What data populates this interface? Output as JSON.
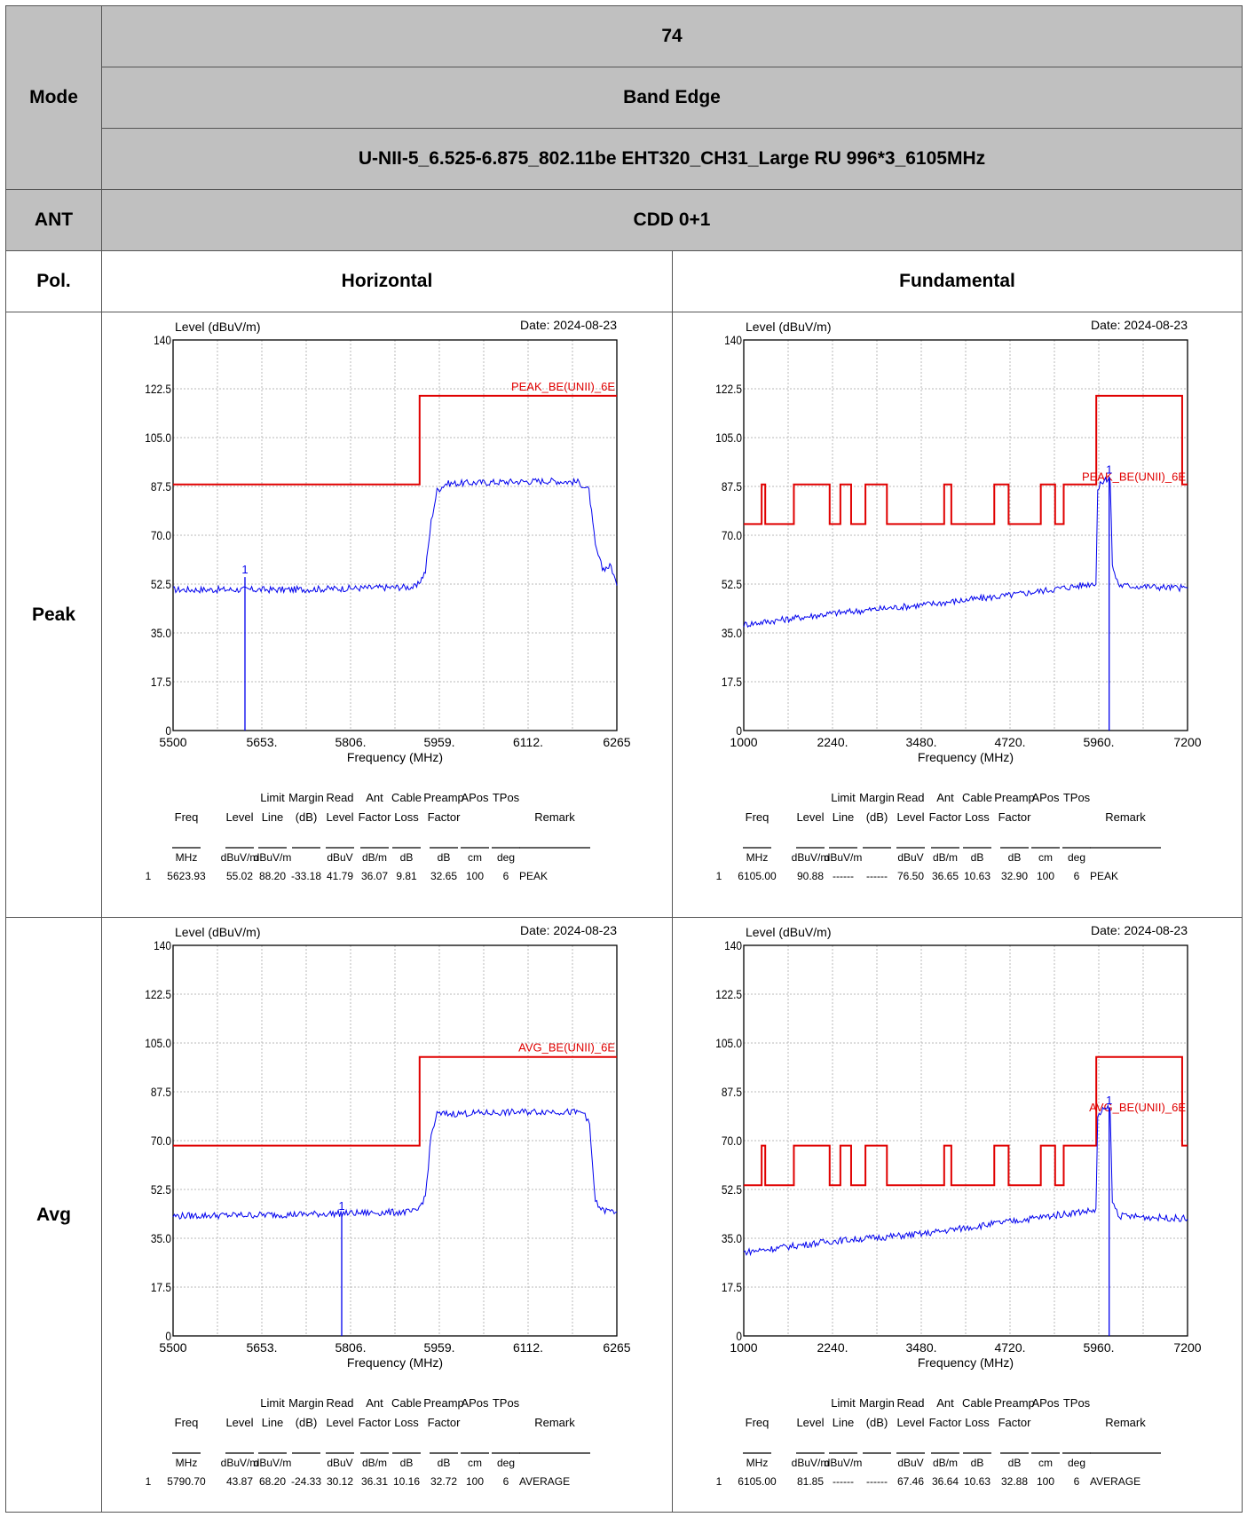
{
  "header": {
    "mode_label": "Mode",
    "test_number": "74",
    "test_item": "Band Edge",
    "config": "U-NII-5_6.525-6.875_802.11be EHT320_CH31_Large RU 996*3_6105MHz",
    "ant_label": "ANT",
    "ant_value": "CDD 0+1",
    "pol_label": "Pol.",
    "col1": "Horizontal",
    "col2": "Fundamental",
    "row_peak": "Peak",
    "row_avg": "Avg"
  },
  "colors": {
    "limit": "#e00000",
    "trace": "#0000ee",
    "grid": "#b8b8b8",
    "header_bg": "#c0c0c0"
  },
  "table_headers": {
    "line1": [
      "",
      "",
      "Limit",
      "Margin",
      "Read",
      "Ant",
      "Cable",
      "Preamp",
      "APos",
      "TPos",
      ""
    ],
    "line2": [
      "Freq",
      "Level",
      "Line",
      "(dB)",
      "Level",
      "Factor",
      "Loss",
      "Factor",
      "",
      "",
      "Remark"
    ],
    "units": [
      "MHz",
      "dBuV/m",
      "dBuV/m",
      "",
      "dBuV",
      "dB/m",
      "dB",
      "dB",
      "cm",
      "deg",
      ""
    ]
  },
  "chart_data": [
    {
      "id": "peak_h",
      "type": "line",
      "ylabel": "Level (dBuV/m)",
      "xlabel": "Frequency (MHz)",
      "date": "Date: 2024-08-23",
      "ylim": [
        0,
        140
      ],
      "yticks": [
        "0",
        "17.5",
        "35.0",
        "52.5",
        "70.0",
        "87.5",
        "105.0",
        "122.5",
        "140"
      ],
      "xlim": [
        5500,
        6265
      ],
      "xticks": [
        "5500",
        "5653.",
        "5806.",
        "5959.",
        "6112.",
        "6265"
      ],
      "limit_label": "PEAK_BE(UNII)_6E",
      "limit_line": [
        [
          5500,
          88.2
        ],
        [
          5925,
          88.2
        ],
        [
          5925,
          120
        ],
        [
          6265,
          120
        ]
      ],
      "trace": [
        [
          5500,
          50.5
        ],
        [
          5700,
          50.5
        ],
        [
          5920,
          51.5
        ],
        [
          5935,
          57
        ],
        [
          5945,
          75
        ],
        [
          5955,
          86
        ],
        [
          5970,
          88.5
        ],
        [
          6050,
          89
        ],
        [
          6150,
          89.5
        ],
        [
          6200,
          89
        ],
        [
          6217,
          86
        ],
        [
          6228,
          66
        ],
        [
          6240,
          58
        ],
        [
          6255,
          59
        ],
        [
          6265,
          52
        ]
      ],
      "marker": {
        "freq": 5623.93,
        "level": 55.02,
        "label": "1"
      },
      "table": {
        "row": [
          "1",
          "5623.93",
          "55.02",
          "88.20",
          "-33.18",
          "41.79",
          "36.07",
          "9.81",
          "32.65",
          "100",
          "6",
          "PEAK"
        ]
      }
    },
    {
      "id": "peak_f",
      "type": "line",
      "ylabel": "Level (dBuV/m)",
      "xlabel": "Frequency (MHz)",
      "date": "Date: 2024-08-23",
      "ylim": [
        0,
        140
      ],
      "yticks": [
        "0",
        "17.5",
        "35.0",
        "52.5",
        "70.0",
        "87.5",
        "105.0",
        "122.5",
        "140"
      ],
      "xlim": [
        1000,
        7200
      ],
      "xticks": [
        "1000",
        "2240.",
        "3480.",
        "4720.",
        "5960.",
        "7200"
      ],
      "limit_label": "PEAK_BE(UNII)_6E",
      "limit_line": [
        [
          1000,
          74
        ],
        [
          1250,
          74
        ],
        [
          1250,
          88.2
        ],
        [
          1300,
          88.2
        ],
        [
          1300,
          74
        ],
        [
          1700,
          74
        ],
        [
          1700,
          88.2
        ],
        [
          2200,
          88.2
        ],
        [
          2200,
          74
        ],
        [
          2350,
          74
        ],
        [
          2350,
          88.2
        ],
        [
          2500,
          88.2
        ],
        [
          2500,
          74
        ],
        [
          2700,
          74
        ],
        [
          2700,
          88.2
        ],
        [
          3000,
          88.2
        ],
        [
          3000,
          74
        ],
        [
          3800,
          74
        ],
        [
          3800,
          88.2
        ],
        [
          3900,
          88.2
        ],
        [
          3900,
          74
        ],
        [
          4500,
          74
        ],
        [
          4500,
          88.2
        ],
        [
          4700,
          88.2
        ],
        [
          4700,
          74
        ],
        [
          5150,
          74
        ],
        [
          5150,
          88.2
        ],
        [
          5350,
          88.2
        ],
        [
          5350,
          74
        ],
        [
          5470,
          74
        ],
        [
          5470,
          88.2
        ],
        [
          5925,
          88.2
        ],
        [
          5925,
          120
        ],
        [
          7125,
          120
        ],
        [
          7125,
          88.2
        ],
        [
          7200,
          88.2
        ]
      ],
      "trace": [
        [
          1000,
          38
        ],
        [
          2240,
          42
        ],
        [
          3480,
          45
        ],
        [
          4720,
          48.5
        ],
        [
          5700,
          52
        ],
        [
          5920,
          53
        ],
        [
          5945,
          86
        ],
        [
          6000,
          89
        ],
        [
          6090,
          90.5
        ],
        [
          6105,
          90.88
        ],
        [
          6120,
          89
        ],
        [
          6150,
          60
        ],
        [
          6180,
          56
        ],
        [
          6250,
          52
        ],
        [
          7200,
          51
        ]
      ],
      "marker": {
        "freq": 6105,
        "level": 90.88,
        "label": "1"
      },
      "table": {
        "row": [
          "1",
          "6105.00",
          "90.88",
          "------",
          "------",
          "76.50",
          "36.65",
          "10.63",
          "32.90",
          "100",
          "6",
          "PEAK"
        ]
      }
    },
    {
      "id": "avg_h",
      "type": "line",
      "ylabel": "Level (dBuV/m)",
      "xlabel": "Frequency (MHz)",
      "date": "Date: 2024-08-23",
      "ylim": [
        0,
        140
      ],
      "yticks": [
        "0",
        "17.5",
        "35.0",
        "52.5",
        "70.0",
        "87.5",
        "105.0",
        "122.5",
        "140"
      ],
      "xlim": [
        5500,
        6265
      ],
      "xticks": [
        "5500",
        "5653.",
        "5806.",
        "5959.",
        "6112.",
        "6265"
      ],
      "limit_label": "AVG_BE(UNII)_6E",
      "limit_line": [
        [
          5500,
          68.2
        ],
        [
          5925,
          68.2
        ],
        [
          5925,
          100
        ],
        [
          6265,
          100
        ]
      ],
      "trace": [
        [
          5500,
          43
        ],
        [
          5700,
          43.5
        ],
        [
          5920,
          44.5
        ],
        [
          5935,
          50
        ],
        [
          5945,
          72
        ],
        [
          5955,
          79.5
        ],
        [
          6050,
          80
        ],
        [
          6150,
          80.5
        ],
        [
          6210,
          80
        ],
        [
          6218,
          75
        ],
        [
          6228,
          48
        ],
        [
          6240,
          45
        ],
        [
          6265,
          44.5
        ]
      ],
      "marker": {
        "freq": 5790.7,
        "level": 43.87,
        "label": "1"
      },
      "table": {
        "row": [
          "1",
          "5790.70",
          "43.87",
          "68.20",
          "-24.33",
          "30.12",
          "36.31",
          "10.16",
          "32.72",
          "100",
          "6",
          "AVERAGE"
        ]
      }
    },
    {
      "id": "avg_f",
      "type": "line",
      "ylabel": "Level (dBuV/m)",
      "xlabel": "Frequency (MHz)",
      "date": "Date: 2024-08-23",
      "ylim": [
        0,
        140
      ],
      "yticks": [
        "0",
        "17.5",
        "35.0",
        "52.5",
        "70.0",
        "87.5",
        "105.0",
        "122.5",
        "140"
      ],
      "xlim": [
        1000,
        7200
      ],
      "xticks": [
        "1000",
        "2240.",
        "3480.",
        "4720.",
        "5960.",
        "7200"
      ],
      "limit_label": "AVG_BE(UNII)_6E",
      "limit_line": [
        [
          1000,
          54
        ],
        [
          1250,
          54
        ],
        [
          1250,
          68.2
        ],
        [
          1300,
          68.2
        ],
        [
          1300,
          54
        ],
        [
          1700,
          54
        ],
        [
          1700,
          68.2
        ],
        [
          2200,
          68.2
        ],
        [
          2200,
          54
        ],
        [
          2350,
          54
        ],
        [
          2350,
          68.2
        ],
        [
          2500,
          68.2
        ],
        [
          2500,
          54
        ],
        [
          2700,
          54
        ],
        [
          2700,
          68.2
        ],
        [
          3000,
          68.2
        ],
        [
          3000,
          54
        ],
        [
          3800,
          54
        ],
        [
          3800,
          68.2
        ],
        [
          3900,
          68.2
        ],
        [
          3900,
          54
        ],
        [
          4500,
          54
        ],
        [
          4500,
          68.2
        ],
        [
          4700,
          68.2
        ],
        [
          4700,
          54
        ],
        [
          5150,
          54
        ],
        [
          5150,
          68.2
        ],
        [
          5350,
          68.2
        ],
        [
          5350,
          54
        ],
        [
          5470,
          54
        ],
        [
          5470,
          68.2
        ],
        [
          5925,
          68.2
        ],
        [
          5925,
          100
        ],
        [
          7125,
          100
        ],
        [
          7125,
          68.2
        ],
        [
          7200,
          68.2
        ]
      ],
      "trace": [
        [
          1000,
          30
        ],
        [
          2240,
          34
        ],
        [
          3480,
          36.5
        ],
        [
          4720,
          41
        ],
        [
          5700,
          44.5
        ],
        [
          5920,
          45
        ],
        [
          5945,
          78
        ],
        [
          6000,
          80.5
        ],
        [
          6105,
          81.85
        ],
        [
          6120,
          80
        ],
        [
          6150,
          48
        ],
        [
          6250,
          43
        ],
        [
          7200,
          42
        ]
      ],
      "marker": {
        "freq": 6105,
        "level": 81.85,
        "label": "1"
      },
      "table": {
        "row": [
          "1",
          "6105.00",
          "81.85",
          "------",
          "------",
          "67.46",
          "36.64",
          "10.63",
          "32.88",
          "100",
          "6",
          "AVERAGE"
        ]
      }
    }
  ]
}
